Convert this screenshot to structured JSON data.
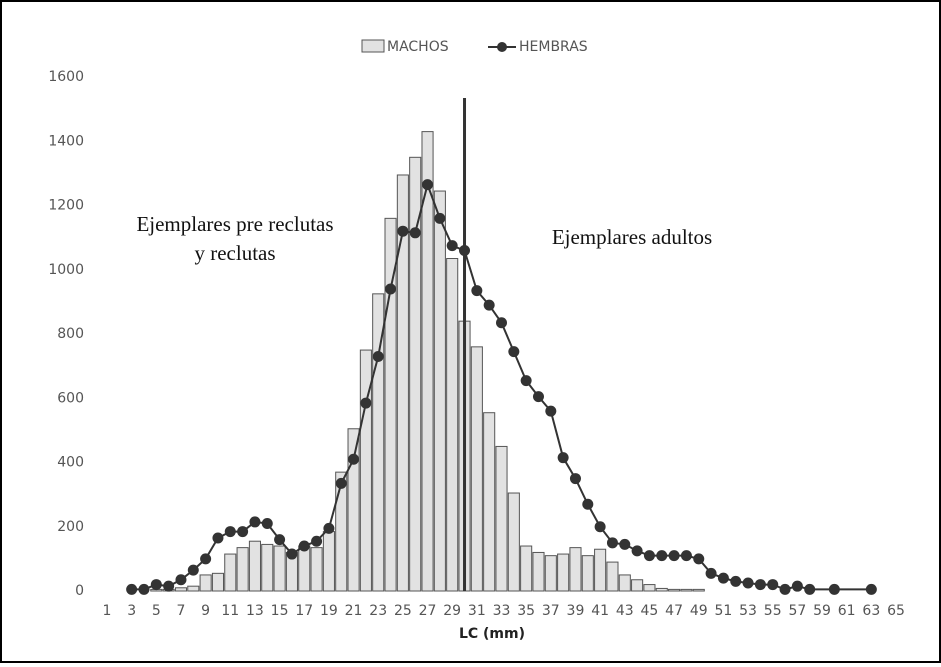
{
  "chart_data": {
    "type": "bar-line",
    "x_label": "LC (mm)",
    "xlim": [
      1,
      65
    ],
    "xticks": [
      1,
      3,
      5,
      7,
      9,
      11,
      13,
      15,
      17,
      19,
      21,
      23,
      25,
      27,
      29,
      31,
      33,
      35,
      37,
      39,
      41,
      43,
      45,
      47,
      49,
      51,
      53,
      55,
      57,
      59,
      61,
      63,
      65
    ],
    "ylim": [
      0,
      1600
    ],
    "yticks": [
      0,
      200,
      400,
      600,
      800,
      1000,
      1200,
      1400,
      1600
    ],
    "vline": 30,
    "annotations": [
      "Ejemplares pre reclutas",
      "y reclutas",
      "Ejemplares adultos"
    ],
    "series": [
      {
        "name": "MACHOS",
        "kind": "bar",
        "color": "#e2e2e2",
        "x": [
          3,
          4,
          5,
          6,
          7,
          8,
          9,
          10,
          11,
          12,
          13,
          14,
          15,
          16,
          17,
          18,
          19,
          20,
          21,
          22,
          23,
          24,
          25,
          26,
          27,
          28,
          29,
          30,
          31,
          32,
          33,
          34,
          35,
          36,
          37,
          38,
          39,
          40,
          41,
          42,
          43,
          44,
          45,
          46,
          47,
          48,
          49
        ],
        "values": [
          0,
          0,
          5,
          5,
          10,
          15,
          50,
          55,
          115,
          135,
          155,
          145,
          140,
          120,
          140,
          135,
          185,
          370,
          505,
          750,
          925,
          1160,
          1295,
          1350,
          1430,
          1245,
          1035,
          840,
          760,
          555,
          450,
          305,
          140,
          120,
          110,
          115,
          135,
          110,
          130,
          90,
          50,
          35,
          20,
          8,
          5,
          5,
          5
        ]
      },
      {
        "name": "HEMBRAS",
        "kind": "line",
        "color": "#333333",
        "x": [
          3,
          4,
          5,
          6,
          7,
          8,
          9,
          10,
          11,
          12,
          13,
          14,
          15,
          16,
          17,
          18,
          19,
          20,
          21,
          22,
          23,
          24,
          25,
          26,
          27,
          28,
          29,
          30,
          31,
          32,
          33,
          34,
          35,
          36,
          37,
          38,
          39,
          40,
          41,
          42,
          43,
          44,
          45,
          46,
          47,
          48,
          49,
          50,
          51,
          52,
          53,
          54,
          55,
          56,
          57,
          58,
          60,
          63
        ],
        "values": [
          5,
          5,
          20,
          15,
          35,
          65,
          100,
          165,
          185,
          185,
          215,
          210,
          160,
          115,
          140,
          155,
          195,
          335,
          410,
          585,
          730,
          940,
          1120,
          1115,
          1265,
          1160,
          1075,
          1060,
          935,
          890,
          835,
          745,
          655,
          605,
          560,
          415,
          350,
          270,
          200,
          150,
          145,
          125,
          110,
          110,
          110,
          110,
          100,
          55,
          40,
          30,
          25,
          20,
          20,
          5,
          15,
          5,
          5,
          5
        ]
      }
    ]
  }
}
